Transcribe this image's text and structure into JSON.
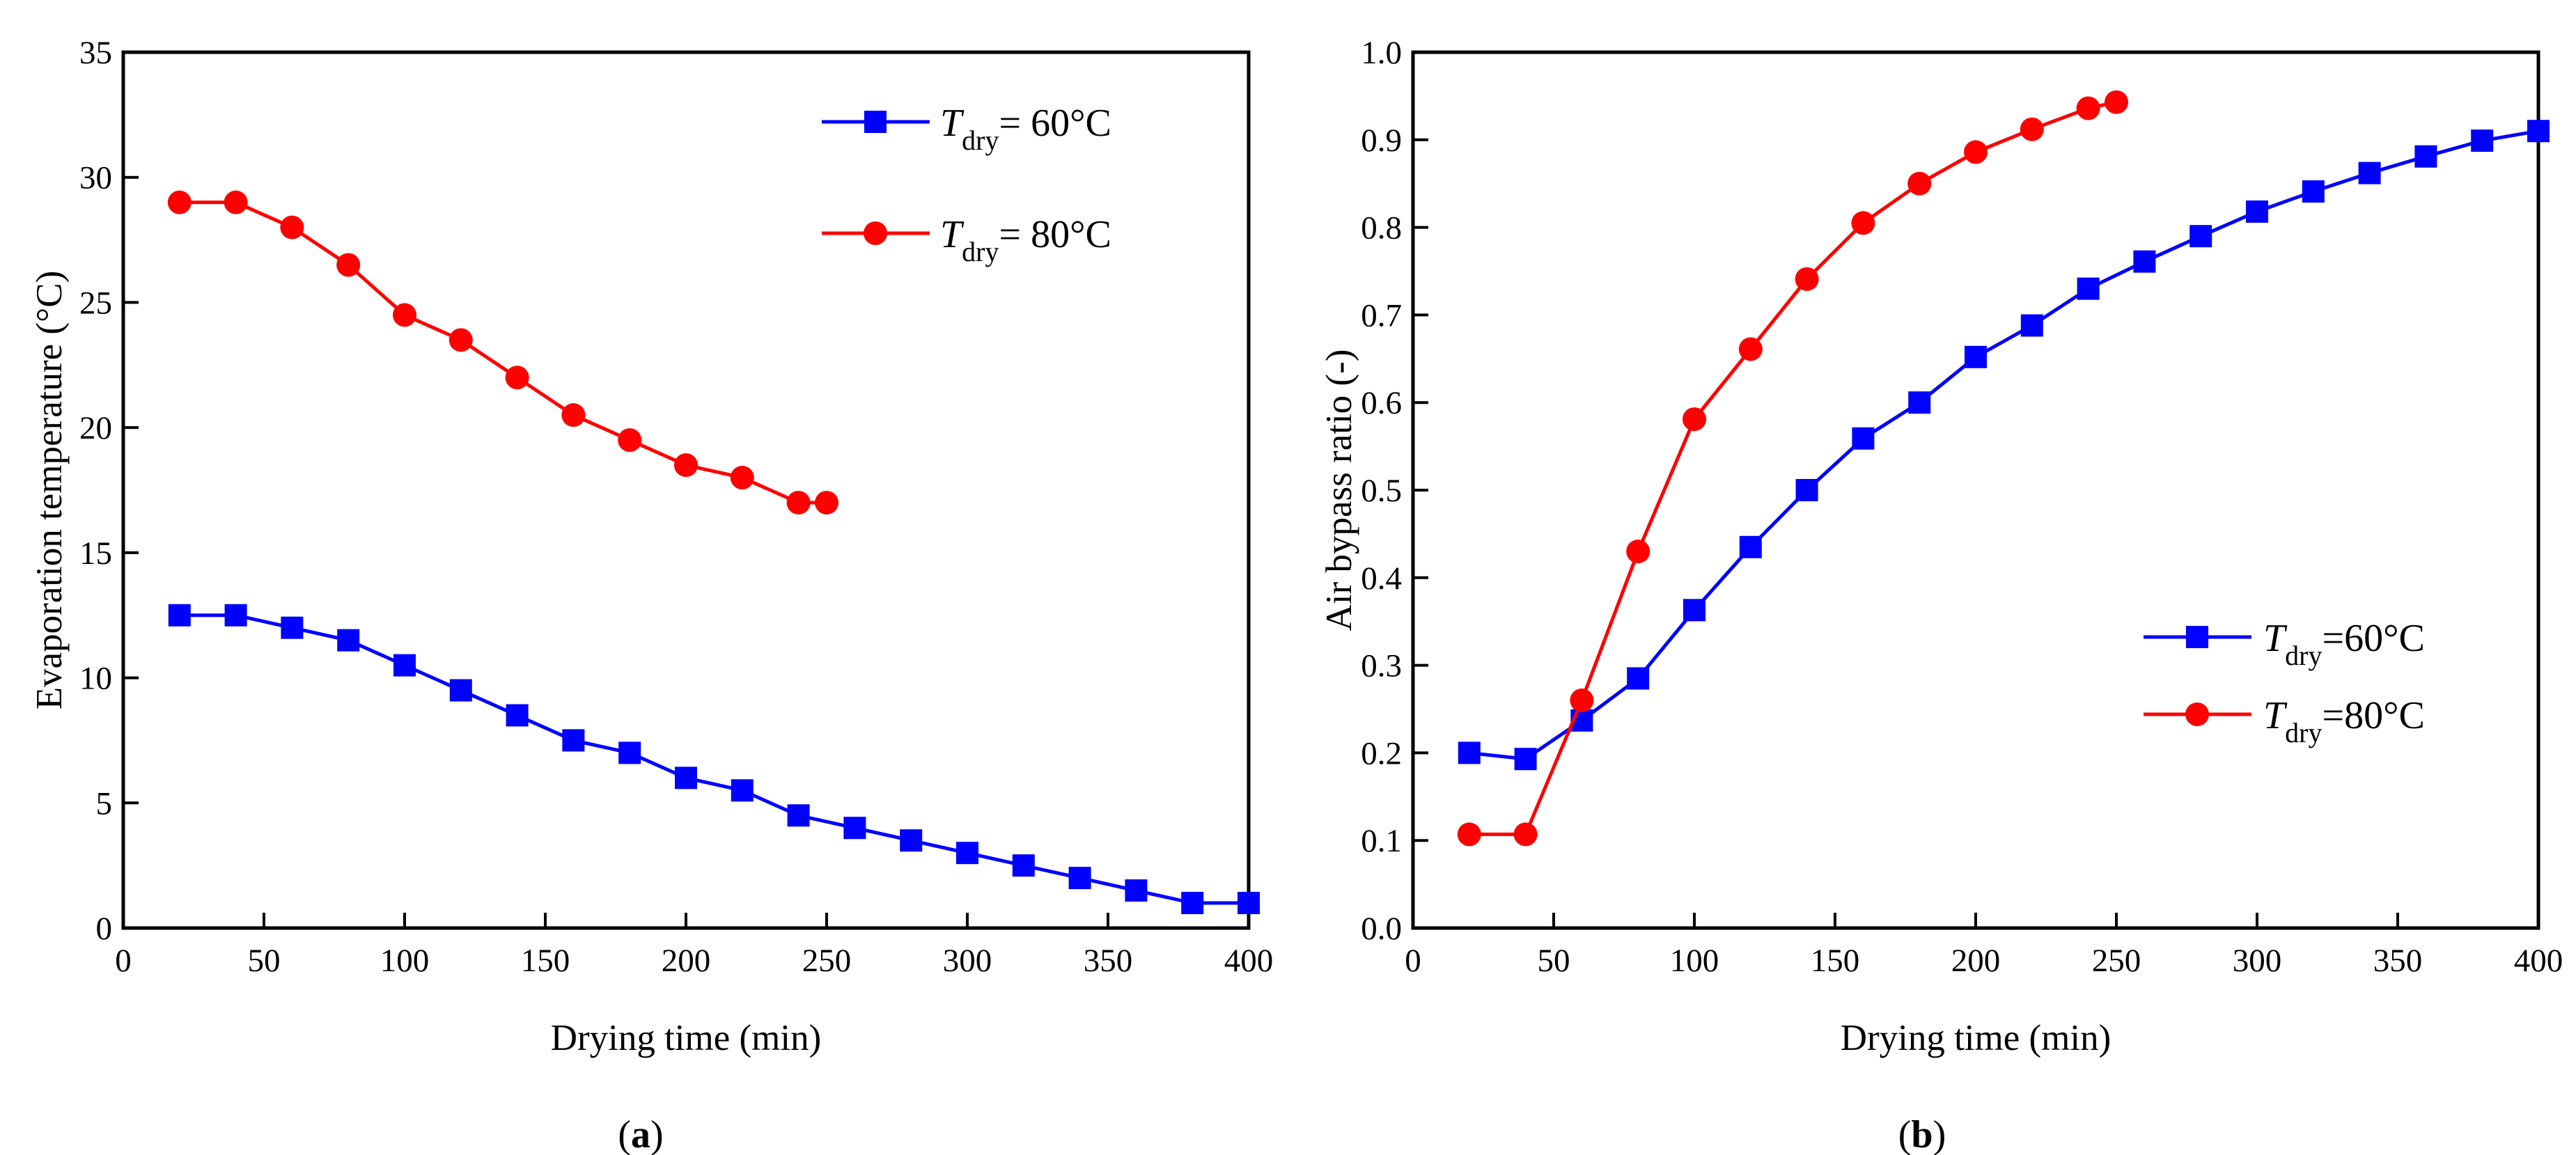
{
  "chart_data": [
    {
      "type": "line",
      "panel_label": {
        "open": "(",
        "letter": "a",
        "close": ")"
      },
      "xlabel": "Drying time (min)",
      "ylabel": "Evaporation temperature (°C)",
      "xlim": [
        0,
        400
      ],
      "ylim": [
        0,
        35
      ],
      "xticks": [
        0,
        50,
        100,
        150,
        200,
        250,
        300,
        350,
        400
      ],
      "yticks": [
        0,
        5,
        10,
        15,
        20,
        25,
        30,
        35
      ],
      "ytick_labels": [
        "0",
        "5",
        "10",
        "15",
        "20",
        "25",
        "30",
        "35"
      ],
      "grid": false,
      "legend_position": "top-right",
      "series": [
        {
          "name": "T_dry = 60°C",
          "label_symbol": "T",
          "label_sub": "dry",
          "label_rest": "= 60°C",
          "color": "#0000ff",
          "marker": "square",
          "x": [
            20,
            40,
            60,
            80,
            100,
            120,
            140,
            160,
            180,
            200,
            220,
            240,
            260,
            280,
            300,
            320,
            340,
            360,
            380,
            400
          ],
          "y": [
            12.5,
            12.5,
            12,
            11.5,
            10.5,
            9.5,
            8.5,
            7.5,
            7,
            6,
            5.5,
            4.5,
            4,
            3.5,
            3,
            2.5,
            2,
            1.5,
            1,
            1
          ]
        },
        {
          "name": "T_dry = 80°C",
          "label_symbol": "T",
          "label_sub": "dry",
          "label_rest": "= 80°C",
          "color": "#ff0000",
          "marker": "circle",
          "x": [
            20,
            40,
            60,
            80,
            100,
            120,
            140,
            160,
            180,
            200,
            220,
            240,
            250
          ],
          "y": [
            29,
            29,
            28,
            26.5,
            24.5,
            23.5,
            22,
            20.5,
            19.5,
            18.5,
            18,
            17,
            17
          ]
        }
      ]
    },
    {
      "type": "line",
      "panel_label": {
        "open": "(",
        "letter": "b",
        "close": ")"
      },
      "xlabel": "Drying time (min)",
      "ylabel": "Air bypass ratio (-)",
      "xlim": [
        0,
        400
      ],
      "ylim": [
        0,
        1.0
      ],
      "xticks": [
        0,
        50,
        100,
        150,
        200,
        250,
        300,
        350,
        400
      ],
      "yticks": [
        0,
        0.1,
        0.2,
        0.3,
        0.4,
        0.5,
        0.6,
        0.7,
        0.8,
        0.9,
        1.0
      ],
      "ytick_labels": [
        "0.0",
        "0.1",
        "0.2",
        "0.3",
        "0.4",
        "0.5",
        "0.6",
        "0.7",
        "0.8",
        "0.9",
        "1.0"
      ],
      "grid": false,
      "legend_position": "lower-right",
      "series": [
        {
          "name": "T_dry = 60°C",
          "label_symbol": "T",
          "label_sub": "dry",
          "label_rest": "=60°C",
          "color": "#0000ff",
          "marker": "square",
          "x": [
            20,
            40,
            60,
            80,
            100,
            120,
            140,
            160,
            180,
            200,
            220,
            240,
            260,
            280,
            300,
            320,
            340,
            360,
            380,
            400
          ],
          "y": [
            0.2,
            0.193,
            0.237,
            0.285,
            0.363,
            0.435,
            0.5,
            0.559,
            0.6,
            0.652,
            0.688,
            0.73,
            0.761,
            0.79,
            0.818,
            0.841,
            0.862,
            0.881,
            0.899,
            0.91
          ]
        },
        {
          "name": "T_dry = 80°C",
          "label_symbol": "T",
          "label_sub": "dry",
          "label_rest": "=80°C",
          "color": "#ff0000",
          "marker": "circle",
          "x": [
            20,
            40,
            60,
            80,
            100,
            120,
            140,
            160,
            180,
            200,
            220,
            240,
            250
          ],
          "y": [
            0.107,
            0.107,
            0.26,
            0.43,
            0.581,
            0.661,
            0.741,
            0.805,
            0.85,
            0.886,
            0.912,
            0.936,
            0.943
          ]
        }
      ]
    }
  ]
}
